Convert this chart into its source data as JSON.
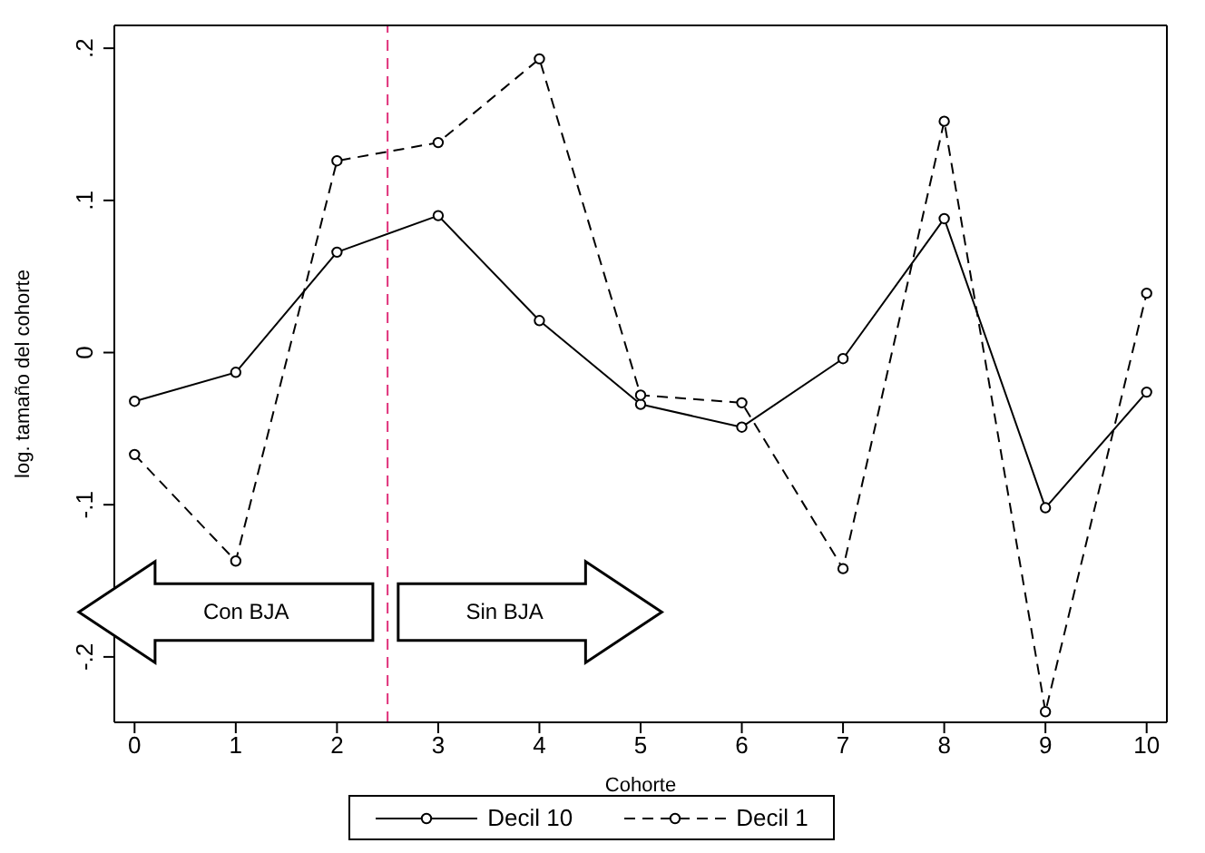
{
  "chart_data": {
    "type": "line",
    "xlabel": "Cohorte",
    "ylabel": "log. tamaño del cohorte",
    "x": [
      0,
      1,
      2,
      3,
      4,
      5,
      6,
      7,
      8,
      9,
      10
    ],
    "series": [
      {
        "name": "Decil 10",
        "color": "#000000",
        "line_style": "solid",
        "values": [
          -0.032,
          -0.013,
          0.066,
          0.09,
          0.021,
          -0.034,
          -0.049,
          -0.004,
          0.088,
          -0.102,
          -0.026
        ]
      },
      {
        "name": "Decil 1",
        "color": "#000000",
        "line_style": "dashed",
        "values": [
          -0.067,
          -0.137,
          0.126,
          0.138,
          0.193,
          -0.028,
          -0.033,
          -0.142,
          0.152,
          -0.236,
          0.039
        ]
      }
    ],
    "xlim": [
      -0.2,
      10.2
    ],
    "xticks": [
      0,
      1,
      2,
      3,
      4,
      5,
      6,
      7,
      8,
      9,
      10
    ],
    "ylim": [
      -0.243,
      0.215
    ],
    "yticks": [
      {
        "value": -0.2,
        "label": "-.2"
      },
      {
        "value": -0.1,
        "label": "-.1"
      },
      {
        "value": 0,
        "label": "0"
      },
      {
        "value": 0.1,
        "label": ".1"
      },
      {
        "value": 0.2,
        "label": ".2"
      }
    ],
    "ref_lines": [
      {
        "axis": "x",
        "value": 2.5,
        "label": null,
        "color": "#e0307a",
        "line_style": "dashed"
      }
    ],
    "annotations": [
      "Con BJA",
      "Sin BJA"
    ],
    "marker": "circle",
    "grid": false,
    "legend": "bottom"
  }
}
